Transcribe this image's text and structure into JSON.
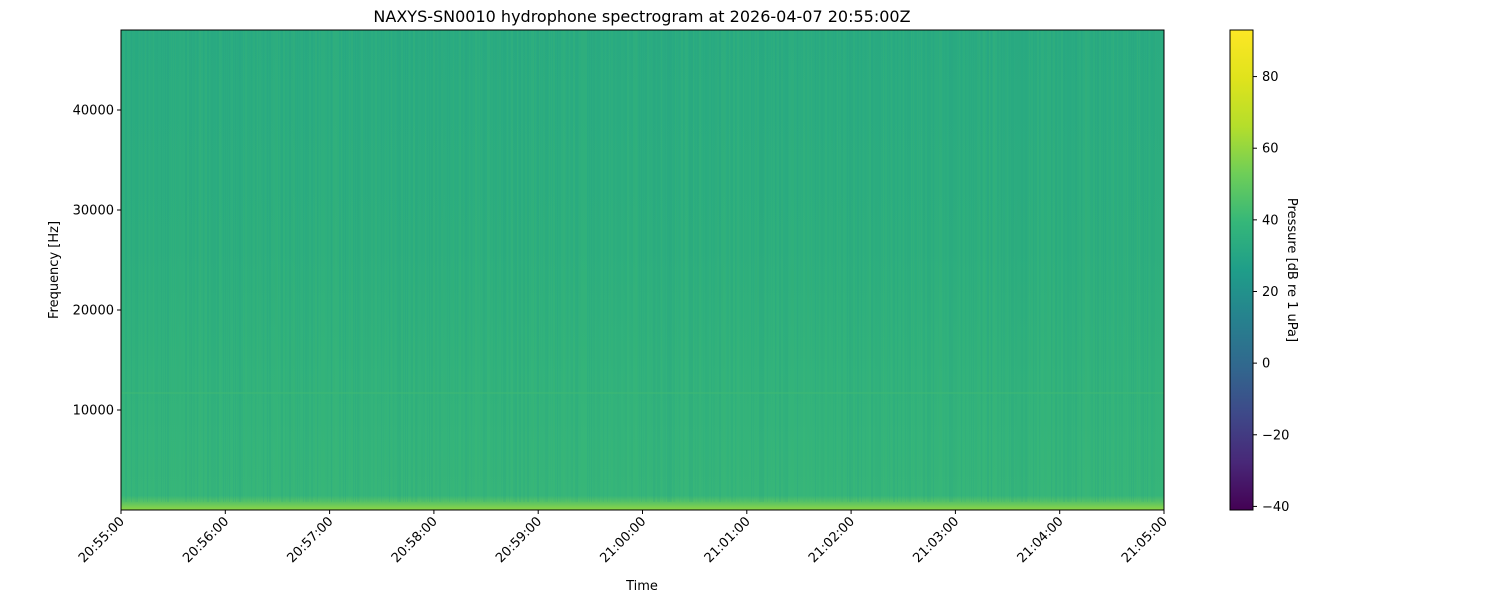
{
  "chart_data": {
    "type": "heatmap",
    "title": "NAXYS-SN0010 hydrophone spectrogram at 2026-04-07 20:55:00Z",
    "xlabel": "Time",
    "ylabel": "Frequency [Hz]",
    "x_ticks": [
      "20:55:00",
      "20:56:00",
      "20:57:00",
      "20:58:00",
      "20:59:00",
      "21:00:00",
      "21:01:00",
      "21:02:00",
      "21:03:00",
      "21:04:00",
      "21:05:00"
    ],
    "xlim": [
      "20:55:00",
      "21:05:00"
    ],
    "y_ticks": [
      10000,
      20000,
      30000,
      40000
    ],
    "ylim": [
      0,
      48000
    ],
    "colormap": "viridis",
    "colorbar": {
      "label": "Pressure [dB re 1 uPa]",
      "range": [
        -41,
        93
      ],
      "ticks": [
        -40,
        -20,
        0,
        20,
        40,
        60,
        80
      ]
    },
    "levels_db": {
      "high_frequency_band": 45,
      "mid_frequency_band": 48,
      "low_frequency_band": 50,
      "below_500hz": 65
    },
    "grid": false
  }
}
